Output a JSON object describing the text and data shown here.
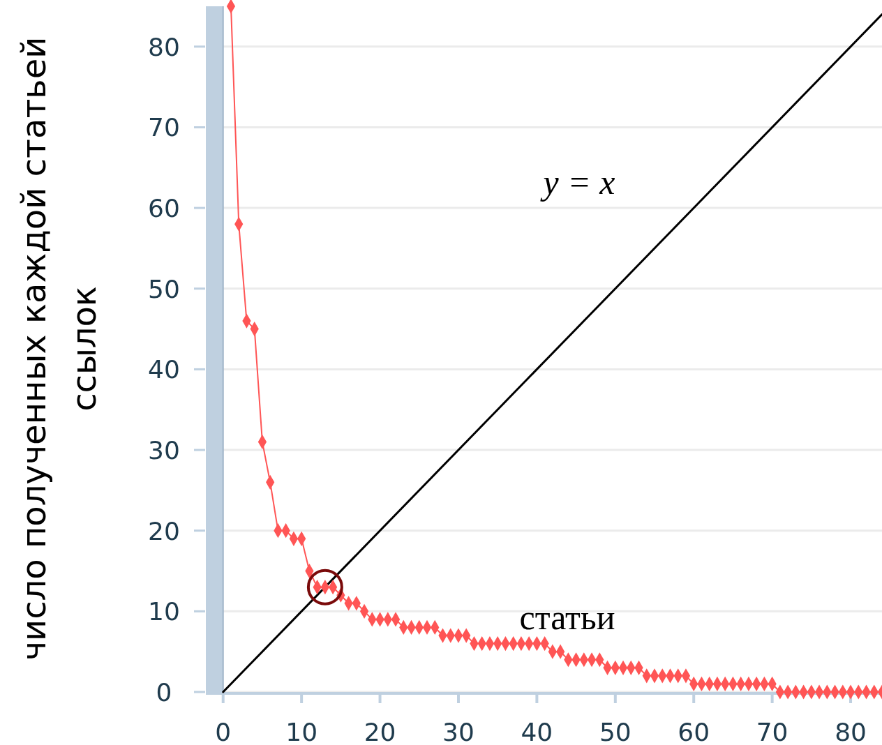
{
  "chart_data": {
    "type": "line",
    "ylabel": "число полученных каждой статьей ссылок",
    "xlim": [
      -2.2,
      84
    ],
    "ylim": [
      0,
      85
    ],
    "xticks": [
      0,
      10,
      20,
      30,
      40,
      50,
      60,
      70,
      80
    ],
    "yticks": [
      0,
      10,
      20,
      30,
      40,
      50,
      60,
      70,
      80
    ],
    "grid": "y",
    "marker": "diamond",
    "line_style": "solid",
    "bands": [
      {
        "axis": "x",
        "from": -2.2,
        "to": 0,
        "color": "#bfd0e0"
      }
    ],
    "annotations": [
      "y = x",
      "статьи"
    ],
    "series": [
      {
        "color": "#ff5555",
        "x": [
          1,
          2,
          3,
          4,
          5,
          6,
          7,
          8,
          9,
          10,
          11,
          12,
          13,
          14,
          15,
          16,
          17,
          18,
          19,
          20,
          21,
          22,
          23,
          24,
          25,
          26,
          27,
          28,
          29,
          30,
          31,
          32,
          33,
          34,
          35,
          36,
          37,
          38,
          39,
          40,
          41,
          42,
          43,
          44,
          45,
          46,
          47,
          48,
          49,
          50,
          51,
          52,
          53,
          54,
          55,
          56,
          57,
          58,
          59,
          60,
          61,
          62,
          63,
          64,
          65,
          66,
          67,
          68,
          69,
          70,
          71,
          72,
          73,
          74,
          75,
          76,
          77,
          78,
          79,
          80,
          81,
          82,
          83,
          84
        ],
        "values": [
          85,
          58,
          46,
          45,
          31,
          26,
          20,
          20,
          19,
          19,
          15,
          13,
          13,
          13,
          12,
          11,
          11,
          10,
          9,
          9,
          9,
          9,
          8,
          8,
          8,
          8,
          8,
          7,
          7,
          7,
          7,
          6,
          6,
          6,
          6,
          6,
          6,
          6,
          6,
          6,
          6,
          5,
          5,
          4,
          4,
          4,
          4,
          4,
          3,
          3,
          3,
          3,
          3,
          2,
          2,
          2,
          2,
          2,
          2,
          1,
          1,
          1,
          1,
          1,
          1,
          1,
          1,
          1,
          1,
          1,
          0,
          0,
          0,
          0,
          0,
          0,
          0,
          0,
          0,
          0,
          0,
          0,
          0,
          0
        ]
      },
      {
        "type": "line",
        "color": "#000000",
        "marker": "none",
        "x": [
          0,
          84
        ],
        "values": [
          0,
          84
        ]
      }
    ]
  }
}
